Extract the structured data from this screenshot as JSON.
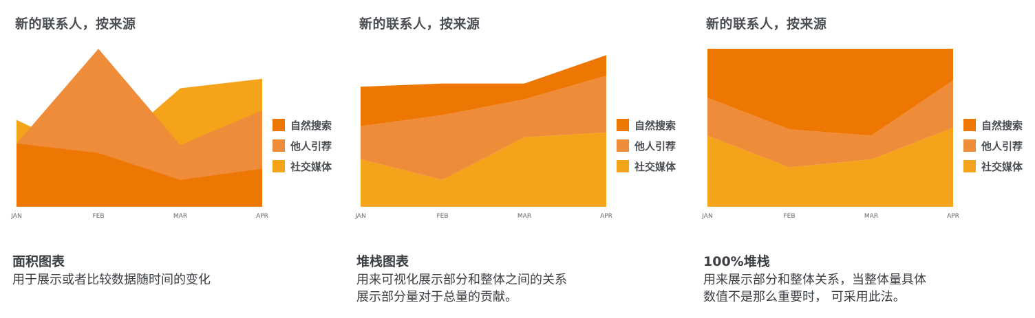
{
  "colors": {
    "organic_search": "#ee7603",
    "referral": "#ef8c3a",
    "social": "#f4a31a"
  },
  "legend_labels": [
    "自然搜索",
    "他人引荐",
    "社交媒体"
  ],
  "chart_data": [
    {
      "type": "area",
      "title": "新的联系人，按来源",
      "categories": [
        "JAN",
        "FEB",
        "MAR",
        "APR"
      ],
      "mode": "overlapping",
      "ylim": [
        0,
        100
      ],
      "series": [
        {
          "name": "社交媒体",
          "values": [
            55,
            30,
            75,
            81
          ]
        },
        {
          "name": "他人引荐",
          "values": [
            40,
            100,
            39,
            61
          ]
        },
        {
          "name": "自然搜索",
          "values": [
            40,
            34,
            17,
            24
          ]
        }
      ]
    },
    {
      "type": "area",
      "title": "新的联系人，按来源",
      "categories": [
        "JAN",
        "FEB",
        "MAR",
        "APR"
      ],
      "mode": "stacked",
      "ylim": [
        0,
        100
      ],
      "series": [
        {
          "name": "社交媒体",
          "values": [
            30,
            17,
            44,
            47
          ]
        },
        {
          "name": "他人引荐",
          "values": [
            21,
            41,
            24,
            36
          ]
        },
        {
          "name": "自然搜索",
          "values": [
            25,
            20,
            10,
            13
          ]
        }
      ]
    },
    {
      "type": "area",
      "title": "新的联系人，按来源",
      "categories": [
        "JAN",
        "FEB",
        "MAR",
        "APR"
      ],
      "mode": "percent",
      "ylim": [
        0,
        100
      ],
      "series": [
        {
          "name": "社交媒体",
          "values": [
            45,
            25,
            30,
            50
          ]
        },
        {
          "name": "他人引荐",
          "values": [
            24,
            24,
            15,
            30
          ]
        },
        {
          "name": "自然搜索",
          "values": [
            31,
            51,
            55,
            20
          ]
        }
      ]
    }
  ],
  "captions": [
    {
      "title": "面积图表",
      "lines": [
        "用于展示或者比较数据随时间的变化"
      ]
    },
    {
      "title": "堆栈图表",
      "lines": [
        "用来可视化展示部分和整体之间的关系",
        "展示部分量对于总量的贡献。"
      ]
    },
    {
      "title": "100%堆栈",
      "lines": [
        "用来展示部分和整体关系，当整体量具体",
        "数值不是那么重要时， 可采用此法。"
      ]
    }
  ]
}
